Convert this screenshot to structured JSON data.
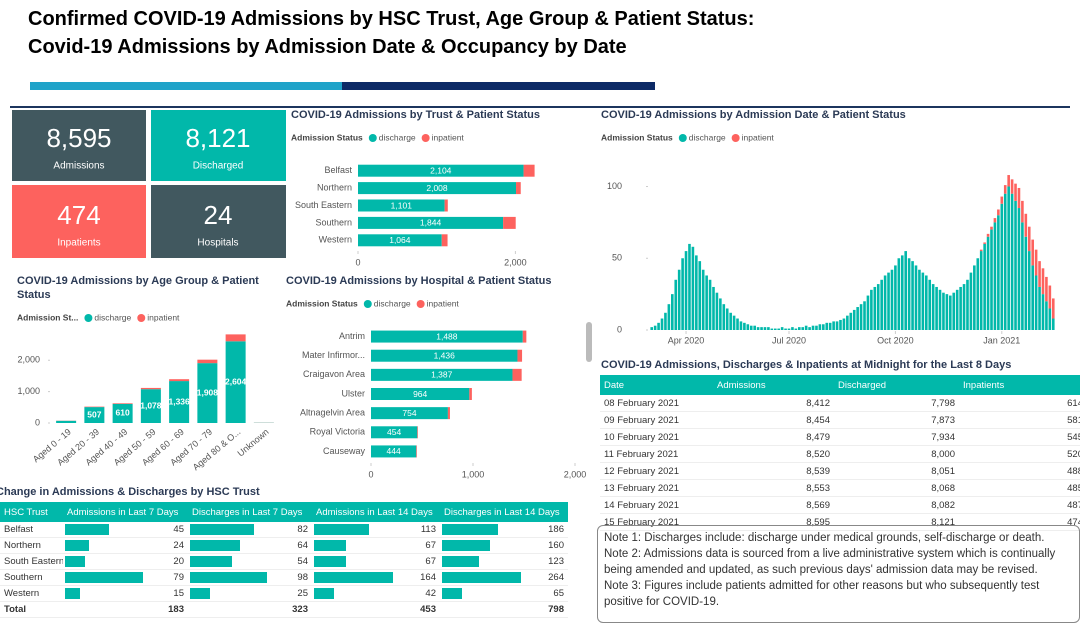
{
  "header": {
    "title_line1": "Confirmed COVID-19 Admissions by HSC Trust, Age Group & Patient Status:",
    "title_line2": "Covid-19 Admissions by Admission Date & Occupancy by Date"
  },
  "kpis": [
    {
      "value": "8,595",
      "label": "Admissions"
    },
    {
      "value": "8,121",
      "label": "Discharged"
    },
    {
      "value": "474",
      "label": "Inpatients"
    },
    {
      "value": "24",
      "label": "Hospitals"
    }
  ],
  "chart_data": [
    {
      "type": "bar",
      "orientation": "horizontal",
      "stacked": true,
      "title": "COVID-19 Admissions by Trust & Patient Status",
      "legend_title": "Admission Status",
      "categories": [
        "Belfast",
        "Northern",
        "South Eastern",
        "Southern",
        "Western"
      ],
      "series": [
        {
          "name": "discharge",
          "color": "#01b8aa",
          "values": [
            2104,
            2008,
            1101,
            1844,
            1064
          ],
          "value_labels": [
            "2,104",
            "2,008",
            "1,101",
            "1,844",
            "1,064"
          ]
        },
        {
          "name": "inpatient",
          "color": "#fd625e",
          "values": [
            140,
            60,
            40,
            160,
            74
          ]
        }
      ],
      "xlim": [
        0,
        2300
      ],
      "xticks": [
        0,
        {
          "value": 2000,
          "label": "2,000"
        }
      ]
    },
    {
      "type": "bar",
      "orientation": "vertical",
      "stacked": true,
      "title": "COVID-19 Admissions by Age Group & Patient Status",
      "legend_title": "Admission St...",
      "categories": [
        "Aged 0 - 19",
        "Aged 20 - 39",
        "Aged 40 - 49",
        "Aged 50 - 59",
        "Aged 60 - 69",
        "Aged 70 - 79",
        "Aged 80 & O...",
        "Unknown"
      ],
      "series": [
        {
          "name": "discharge",
          "color": "#01b8aa",
          "values": [
            70,
            507,
            610,
            1078,
            1336,
            1908,
            2604,
            8
          ],
          "value_labels": [
            null,
            "507",
            "610",
            "1,078",
            "1,336",
            "1,908",
            "2,604",
            null
          ]
        },
        {
          "name": "inpatient",
          "color": "#fd625e",
          "values": [
            5,
            15,
            20,
            40,
            60,
            110,
            220,
            4
          ]
        }
      ],
      "ylim": [
        0,
        2900
      ],
      "yticks": [
        0,
        {
          "value": 1000,
          "label": "1,000"
        },
        {
          "value": 2000,
          "label": "2,000"
        }
      ]
    },
    {
      "type": "bar",
      "orientation": "horizontal",
      "stacked": true,
      "title": "COVID-19 Admissions by Hospital & Patient Status",
      "legend_title": "Admission Status",
      "categories": [
        "Antrim",
        "Mater Infirmor...",
        "Craigavon Area",
        "Ulster",
        "Altnagelvin Area",
        "Royal Victoria",
        "Causeway"
      ],
      "series": [
        {
          "name": "discharge",
          "color": "#01b8aa",
          "values": [
            1488,
            1436,
            1387,
            964,
            754,
            454,
            444
          ],
          "value_labels": [
            "1,488",
            "1,436",
            "1,387",
            "964",
            "754",
            "454",
            "444"
          ]
        },
        {
          "name": "inpatient",
          "color": "#fd625e",
          "values": [
            35,
            45,
            90,
            25,
            20,
            6,
            6
          ]
        }
      ],
      "xlim": [
        0,
        2000
      ],
      "xticks": [
        0,
        {
          "value": 1000,
          "label": "1,000"
        },
        {
          "value": 2000,
          "label": "2,000"
        }
      ]
    },
    {
      "type": "bar",
      "orientation": "vertical",
      "stacked": true,
      "title": "COVID-19 Admissions by Admission Date & Patient Status",
      "legend_title": "Admission Status",
      "categories": [
        null,
        null,
        null,
        null,
        null,
        null,
        null,
        null,
        null,
        null,
        null,
        null,
        null,
        null,
        null,
        null,
        null,
        null,
        null,
        null,
        null,
        null,
        null,
        null,
        null,
        null,
        null,
        null,
        null,
        null,
        null,
        null,
        null,
        null,
        null,
        null,
        null,
        null,
        null,
        null,
        null,
        null,
        null,
        null,
        null,
        null,
        null,
        null,
        null,
        null,
        null,
        null,
        null,
        null,
        null,
        null,
        null,
        null,
        null,
        null,
        null,
        null,
        null,
        null,
        null,
        null,
        null,
        null,
        null,
        null,
        null,
        null,
        null,
        null,
        null,
        null,
        null,
        null,
        null,
        null,
        null,
        null,
        null,
        null,
        null,
        null,
        null,
        null,
        null,
        null,
        null,
        null,
        null,
        null,
        null,
        null,
        null,
        null,
        null,
        null,
        null,
        null,
        null,
        null,
        null,
        null,
        null,
        null,
        null,
        null,
        null,
        null,
        null,
        null,
        null,
        null,
        null,
        null
      ],
      "series": [
        {
          "name": "discharge",
          "color": "#01b8aa",
          "values": [
            2,
            3,
            5,
            8,
            12,
            18,
            25,
            35,
            42,
            50,
            55,
            60,
            58,
            52,
            48,
            42,
            38,
            35,
            30,
            26,
            22,
            18,
            15,
            12,
            10,
            8,
            6,
            5,
            4,
            3,
            3,
            2,
            2,
            2,
            2,
            1,
            1,
            1,
            2,
            1,
            1,
            2,
            1,
            2,
            2,
            3,
            2,
            3,
            3,
            4,
            4,
            5,
            5,
            6,
            6,
            7,
            8,
            10,
            12,
            14,
            16,
            18,
            20,
            24,
            28,
            30,
            32,
            35,
            38,
            40,
            42,
            45,
            50,
            52,
            55,
            50,
            48,
            45,
            42,
            40,
            38,
            35,
            32,
            30,
            28,
            26,
            25,
            24,
            26,
            28,
            30,
            32,
            35,
            40,
            45,
            50,
            55,
            60,
            65,
            70,
            75,
            80,
            88,
            95,
            100,
            95,
            90,
            85,
            75,
            65,
            55,
            45,
            38,
            30,
            25,
            20,
            15,
            8
          ]
        },
        {
          "name": "inpatient",
          "color": "#fd625e",
          "values": [
            0,
            0,
            0,
            0,
            0,
            0,
            0,
            0,
            0,
            0,
            0,
            0,
            0,
            0,
            0,
            0,
            0,
            0,
            0,
            0,
            0,
            0,
            0,
            0,
            0,
            0,
            0,
            0,
            0,
            0,
            0,
            0,
            0,
            0,
            0,
            0,
            0,
            0,
            0,
            0,
            0,
            0,
            0,
            0,
            0,
            0,
            0,
            0,
            0,
            0,
            0,
            0,
            0,
            0,
            0,
            0,
            0,
            0,
            0,
            0,
            0,
            0,
            0,
            0,
            0,
            0,
            0,
            0,
            0,
            0,
            0,
            0,
            0,
            0,
            0,
            0,
            0,
            0,
            0,
            0,
            0,
            0,
            0,
            0,
            0,
            0,
            0,
            0,
            0,
            0,
            0,
            0,
            0,
            0,
            0,
            0,
            1,
            1,
            2,
            2,
            3,
            4,
            5,
            6,
            8,
            10,
            12,
            14,
            15,
            16,
            17,
            18,
            18,
            18,
            18,
            17,
            16,
            14
          ]
        }
      ],
      "ylim": [
        0,
        115
      ],
      "yticks": [
        0,
        50,
        100
      ],
      "xticks": [
        {
          "value": 10,
          "label": "Apr 2020"
        },
        {
          "value": 40,
          "label": "Jul 2020"
        },
        {
          "value": 71,
          "label": "Oct 2020"
        },
        {
          "value": 102,
          "label": "Jan 2021"
        }
      ]
    }
  ],
  "occupancy_table": {
    "title": "COVID-19 Admissions, Discharges & Inpatients at Midnight for the Last 8 Days",
    "columns": [
      "Date",
      "Admissions",
      "Discharged",
      "Inpatients"
    ],
    "rows": [
      [
        "08 February 2021",
        "8,412",
        "7,798",
        "614"
      ],
      [
        "09 February 2021",
        "8,454",
        "7,873",
        "581"
      ],
      [
        "10 February 2021",
        "8,479",
        "7,934",
        "545"
      ],
      [
        "11 February 2021",
        "8,520",
        "8,000",
        "520"
      ],
      [
        "12 February 2021",
        "8,539",
        "8,051",
        "488"
      ],
      [
        "13 February 2021",
        "8,553",
        "8,068",
        "485"
      ],
      [
        "14 February 2021",
        "8,569",
        "8,082",
        "487"
      ],
      [
        "15 February 2021",
        "8,595",
        "8,121",
        "474"
      ]
    ]
  },
  "hsc_table": {
    "title": "Change in Admissions & Discharges by HSC Trust",
    "columns": [
      "HSC Trust",
      "Admissions in Last 7 Days",
      "Discharges in Last 7 Days",
      "Admissions in Last 14 Days",
      "Discharges in Last 14 Days"
    ],
    "rows": [
      {
        "trust": "Belfast",
        "values": [
          45,
          82,
          113,
          186
        ]
      },
      {
        "trust": "Northern",
        "values": [
          24,
          64,
          67,
          160
        ]
      },
      {
        "trust": "South Eastern",
        "values": [
          20,
          54,
          67,
          123
        ]
      },
      {
        "trust": "Southern",
        "values": [
          79,
          98,
          164,
          264
        ]
      },
      {
        "trust": "Western",
        "values": [
          15,
          25,
          42,
          65
        ]
      }
    ],
    "total": {
      "label": "Total",
      "values": [
        183,
        323,
        453,
        798
      ]
    }
  },
  "notes": [
    {
      "label": "Note 1:",
      "text": "Discharges include: discharge under medical grounds, self-discharge or death."
    },
    {
      "label": "Note 2:",
      "text": "Admissions data is sourced from a live administrative system which is continually being amended and updated, as such previous days' admission data may be revised."
    },
    {
      "label": "Note 3:",
      "text": "Figures include patients admitted for other reasons but who subsequently test positive for COVID-19."
    }
  ]
}
